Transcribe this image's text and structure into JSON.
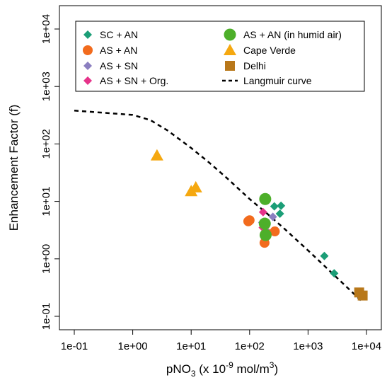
{
  "chart_data": {
    "type": "scatter",
    "xscale": "log",
    "yscale": "log",
    "xlim": [
      0.1,
      10000
    ],
    "ylim": [
      0.1,
      10000
    ],
    "xlabel_parts": {
      "prefix": "pNO",
      "sub": "3",
      "middle": " (x 10",
      "sup1": "-9",
      "mid2": " mol/m",
      "sup2": "3",
      "suffix": ")"
    },
    "ylabel": "Enhancement Factor (f)",
    "x_ticks": [
      {
        "value": 0.1,
        "label": "1e-01"
      },
      {
        "value": 1,
        "label": "1e+00"
      },
      {
        "value": 10,
        "label": "1e+01"
      },
      {
        "value": 100,
        "label": "1e+02"
      },
      {
        "value": 1000,
        "label": "1e+03"
      },
      {
        "value": 10000,
        "label": "1e+04"
      }
    ],
    "y_ticks": [
      {
        "value": 0.1,
        "label": "1e-01"
      },
      {
        "value": 1,
        "label": "1e+00"
      },
      {
        "value": 10,
        "label": "1e+01"
      },
      {
        "value": 100,
        "label": "1e+02"
      },
      {
        "value": 1000,
        "label": "1e+03"
      },
      {
        "value": 10000,
        "label": "1e+04"
      }
    ],
    "legend_position": "top",
    "series": [
      {
        "name": "SC + AN",
        "marker": "diamond",
        "color": "#1b9e77",
        "points": [
          [
            175,
            10.5
          ],
          [
            265,
            8.2
          ],
          [
            345,
            8.4
          ],
          [
            330,
            6.1
          ],
          [
            1900,
            1.12
          ],
          [
            2800,
            0.56
          ]
        ]
      },
      {
        "name": "AS + AN",
        "marker": "circle",
        "color": "#f26b1d",
        "points": [
          [
            95,
            4.5
          ],
          [
            100,
            4.7
          ],
          [
            180,
            1.9
          ],
          [
            195,
            2.8
          ],
          [
            270,
            3.0
          ]
        ]
      },
      {
        "name": "AS + SN",
        "marker": "diamond",
        "color": "#8b7fc0",
        "points": [
          [
            165,
            4.3
          ],
          [
            250,
            5.4
          ],
          [
            185,
            3.2
          ]
        ]
      },
      {
        "name": "AS + SN + Org.",
        "marker": "diamond",
        "color": "#e6338a",
        "points": [
          [
            170,
            6.5
          ],
          [
            175,
            4.2
          ],
          [
            168,
            3.5
          ]
        ]
      },
      {
        "name": "AS + AN (in humid air)",
        "marker": "circle-large",
        "color": "#4daf2a",
        "points": [
          [
            185,
            11.0
          ],
          [
            182,
            4.1
          ],
          [
            188,
            2.6
          ]
        ]
      },
      {
        "name": "Cape Verde",
        "marker": "triangle",
        "color": "#f5a810",
        "points": [
          [
            2.6,
            63
          ],
          [
            10.0,
            15.0
          ],
          [
            12.0,
            17.5
          ]
        ]
      },
      {
        "name": "Delhi",
        "marker": "square",
        "color": "#b8781a",
        "points": [
          [
            7500,
            0.26
          ],
          [
            8600,
            0.23
          ]
        ]
      },
      {
        "name": "Langmuir curve",
        "marker": "dashed-line",
        "color": "#000000",
        "points": [
          [
            0.1,
            380
          ],
          [
            0.3,
            350
          ],
          [
            1,
            320
          ],
          [
            2,
            260
          ],
          [
            4,
            170
          ],
          [
            10,
            85
          ],
          [
            20,
            48
          ],
          [
            40,
            26
          ],
          [
            100,
            11
          ],
          [
            200,
            6.1
          ],
          [
            400,
            3.3
          ],
          [
            1000,
            1.4
          ],
          [
            2000,
            0.72
          ],
          [
            4000,
            0.37
          ],
          [
            8000,
            0.19
          ]
        ]
      }
    ],
    "legend_columns": [
      [
        "SC + AN",
        "AS + AN",
        "AS + SN",
        "AS + SN + Org."
      ],
      [
        "AS + AN (in humid air)",
        "Cape Verde",
        "Delhi",
        "Langmuir curve"
      ]
    ]
  }
}
